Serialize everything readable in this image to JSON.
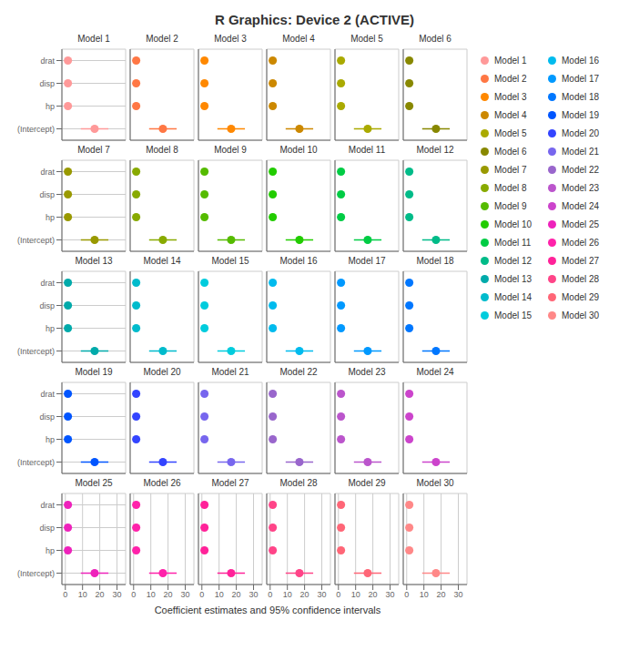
{
  "title": "R Graphics: Device 2 (ACTIVE)",
  "xlabel": "Coefficient estimates and 95% confidence intervals",
  "legend": "right",
  "chart_data": [
    {
      "type": "scatter",
      "orientation": "horizontal",
      "title": "Model 1",
      "color": "#FF9999",
      "categories": [
        "drat",
        "disp",
        "hp",
        "(Intercept)"
      ],
      "values": [
        1.5,
        1.5,
        1.5,
        17
      ],
      "errors": [
        null,
        null,
        null,
        8
      ],
      "xlim": [
        -2,
        35
      ],
      "xticks": [
        0,
        10,
        20,
        30
      ],
      "grid": true,
      "tick_labels": "y"
    },
    {
      "type": "scatter",
      "orientation": "horizontal",
      "title": "Model 2",
      "color": "#FF7744",
      "categories": [
        "drat",
        "disp",
        "hp",
        "(Intercept)"
      ],
      "values": [
        1.5,
        1.5,
        1.5,
        17
      ],
      "errors": [
        null,
        null,
        null,
        8
      ],
      "xlim": [
        -2,
        35
      ],
      "xticks": [
        0,
        10,
        20,
        30
      ],
      "grid": true,
      "tick_labels": false
    },
    {
      "type": "scatter",
      "orientation": "horizontal",
      "title": "Model 3",
      "color": "#FF8800",
      "categories": [
        "drat",
        "disp",
        "hp",
        "(Intercept)"
      ],
      "values": [
        1.5,
        1.5,
        1.5,
        17
      ],
      "errors": [
        null,
        null,
        null,
        8
      ],
      "xlim": [
        -2,
        35
      ],
      "xticks": [
        0,
        10,
        20,
        30
      ],
      "grid": true,
      "tick_labels": false
    },
    {
      "type": "scatter",
      "orientation": "horizontal",
      "title": "Model 4",
      "color": "#CC8800",
      "categories": [
        "drat",
        "disp",
        "hp",
        "(Intercept)"
      ],
      "values": [
        1.5,
        1.5,
        1.5,
        17
      ],
      "errors": [
        null,
        null,
        null,
        8
      ],
      "xlim": [
        -2,
        35
      ],
      "xticks": [
        0,
        10,
        20,
        30
      ],
      "grid": true,
      "tick_labels": false
    },
    {
      "type": "scatter",
      "orientation": "horizontal",
      "title": "Model 5",
      "color": "#AAAA00",
      "categories": [
        "drat",
        "disp",
        "hp",
        "(Intercept)"
      ],
      "values": [
        1.5,
        1.5,
        1.5,
        17
      ],
      "errors": [
        null,
        null,
        null,
        8
      ],
      "xlim": [
        -2,
        35
      ],
      "xticks": [
        0,
        10,
        20,
        30
      ],
      "grid": true,
      "tick_labels": false
    },
    {
      "type": "scatter",
      "orientation": "horizontal",
      "title": "Model 6",
      "color": "#888800",
      "categories": [
        "drat",
        "disp",
        "hp",
        "(Intercept)"
      ],
      "values": [
        1.5,
        1.5,
        1.5,
        17
      ],
      "errors": [
        null,
        null,
        null,
        8
      ],
      "xlim": [
        -2,
        35
      ],
      "xticks": [
        0,
        10,
        20,
        30
      ],
      "grid": true,
      "tick_labels": false
    },
    {
      "type": "scatter",
      "orientation": "horizontal",
      "title": "Model 7",
      "color": "#999900",
      "categories": [
        "drat",
        "disp",
        "hp",
        "(Intercept)"
      ],
      "values": [
        1.5,
        1.5,
        1.5,
        17
      ],
      "errors": [
        null,
        null,
        null,
        8
      ],
      "xlim": [
        -2,
        35
      ],
      "xticks": [
        0,
        10,
        20,
        30
      ],
      "grid": true,
      "tick_labels": "y"
    },
    {
      "type": "scatter",
      "orientation": "horizontal",
      "title": "Model 8",
      "color": "#88AA00",
      "categories": [
        "drat",
        "disp",
        "hp",
        "(Intercept)"
      ],
      "values": [
        1.5,
        1.5,
        1.5,
        17
      ],
      "errors": [
        null,
        null,
        null,
        8
      ],
      "xlim": [
        -2,
        35
      ],
      "xticks": [
        0,
        10,
        20,
        30
      ],
      "grid": true,
      "tick_labels": false
    },
    {
      "type": "scatter",
      "orientation": "horizontal",
      "title": "Model 9",
      "color": "#55BB00",
      "categories": [
        "drat",
        "disp",
        "hp",
        "(Intercept)"
      ],
      "values": [
        1.5,
        1.5,
        1.5,
        17
      ],
      "errors": [
        null,
        null,
        null,
        8
      ],
      "xlim": [
        -2,
        35
      ],
      "xticks": [
        0,
        10,
        20,
        30
      ],
      "grid": true,
      "tick_labels": false
    },
    {
      "type": "scatter",
      "orientation": "horizontal",
      "title": "Model 10",
      "color": "#22CC00",
      "categories": [
        "drat",
        "disp",
        "hp",
        "(Intercept)"
      ],
      "values": [
        1.5,
        1.5,
        1.5,
        17
      ],
      "errors": [
        null,
        null,
        null,
        8
      ],
      "xlim": [
        -2,
        35
      ],
      "xticks": [
        0,
        10,
        20,
        30
      ],
      "grid": true,
      "tick_labels": false
    },
    {
      "type": "scatter",
      "orientation": "horizontal",
      "title": "Model 11",
      "color": "#00CC44",
      "categories": [
        "drat",
        "disp",
        "hp",
        "(Intercept)"
      ],
      "values": [
        1.5,
        1.5,
        1.5,
        17
      ],
      "errors": [
        null,
        null,
        null,
        8
      ],
      "xlim": [
        -2,
        35
      ],
      "xticks": [
        0,
        10,
        20,
        30
      ],
      "grid": true,
      "tick_labels": false
    },
    {
      "type": "scatter",
      "orientation": "horizontal",
      "title": "Model 12",
      "color": "#00BB88",
      "categories": [
        "drat",
        "disp",
        "hp",
        "(Intercept)"
      ],
      "values": [
        1.5,
        1.5,
        1.5,
        17
      ],
      "errors": [
        null,
        null,
        null,
        8
      ],
      "xlim": [
        -2,
        35
      ],
      "xticks": [
        0,
        10,
        20,
        30
      ],
      "grid": true,
      "tick_labels": false
    },
    {
      "type": "scatter",
      "orientation": "horizontal",
      "title": "Model 13",
      "color": "#00AAAA",
      "categories": [
        "drat",
        "disp",
        "hp",
        "(Intercept)"
      ],
      "values": [
        1.5,
        1.5,
        1.5,
        17
      ],
      "errors": [
        null,
        null,
        null,
        8
      ],
      "xlim": [
        -2,
        35
      ],
      "xticks": [
        0,
        10,
        20,
        30
      ],
      "grid": true,
      "tick_labels": "y"
    },
    {
      "type": "scatter",
      "orientation": "horizontal",
      "title": "Model 14",
      "color": "#00BBCC",
      "categories": [
        "drat",
        "disp",
        "hp",
        "(Intercept)"
      ],
      "values": [
        1.5,
        1.5,
        1.5,
        17
      ],
      "errors": [
        null,
        null,
        null,
        8
      ],
      "xlim": [
        -2,
        35
      ],
      "xticks": [
        0,
        10,
        20,
        30
      ],
      "grid": true,
      "tick_labels": false
    },
    {
      "type": "scatter",
      "orientation": "horizontal",
      "title": "Model 15",
      "color": "#00CCDD",
      "categories": [
        "drat",
        "disp",
        "hp",
        "(Intercept)"
      ],
      "values": [
        1.5,
        1.5,
        1.5,
        17
      ],
      "errors": [
        null,
        null,
        null,
        8
      ],
      "xlim": [
        -2,
        35
      ],
      "xticks": [
        0,
        10,
        20,
        30
      ],
      "grid": true,
      "tick_labels": false
    },
    {
      "type": "scatter",
      "orientation": "horizontal",
      "title": "Model 16",
      "color": "#00BBEE",
      "categories": [
        "drat",
        "disp",
        "hp",
        "(Intercept)"
      ],
      "values": [
        1.5,
        1.5,
        1.5,
        17
      ],
      "errors": [
        null,
        null,
        null,
        8
      ],
      "xlim": [
        -2,
        35
      ],
      "xticks": [
        0,
        10,
        20,
        30
      ],
      "grid": true,
      "tick_labels": false
    },
    {
      "type": "scatter",
      "orientation": "horizontal",
      "title": "Model 17",
      "color": "#0099FF",
      "categories": [
        "drat",
        "disp",
        "hp",
        "(Intercept)"
      ],
      "values": [
        1.5,
        1.5,
        1.5,
        17
      ],
      "errors": [
        null,
        null,
        null,
        8
      ],
      "xlim": [
        -2,
        35
      ],
      "xticks": [
        0,
        10,
        20,
        30
      ],
      "grid": true,
      "tick_labels": false
    },
    {
      "type": "scatter",
      "orientation": "horizontal",
      "title": "Model 18",
      "color": "#0077FF",
      "categories": [
        "drat",
        "disp",
        "hp",
        "(Intercept)"
      ],
      "values": [
        1.5,
        1.5,
        1.5,
        17
      ],
      "errors": [
        null,
        null,
        null,
        8
      ],
      "xlim": [
        -2,
        35
      ],
      "xticks": [
        0,
        10,
        20,
        30
      ],
      "grid": true,
      "tick_labels": false
    },
    {
      "type": "scatter",
      "orientation": "horizontal",
      "title": "Model 19",
      "color": "#0055FF",
      "categories": [
        "drat",
        "disp",
        "hp",
        "(Intercept)"
      ],
      "values": [
        1.5,
        1.5,
        1.5,
        17
      ],
      "errors": [
        null,
        null,
        null,
        8
      ],
      "xlim": [
        -2,
        35
      ],
      "xticks": [
        0,
        10,
        20,
        30
      ],
      "grid": true,
      "tick_labels": "y"
    },
    {
      "type": "scatter",
      "orientation": "horizontal",
      "title": "Model 20",
      "color": "#3344FF",
      "categories": [
        "drat",
        "disp",
        "hp",
        "(Intercept)"
      ],
      "values": [
        1.5,
        1.5,
        1.5,
        17
      ],
      "errors": [
        null,
        null,
        null,
        8
      ],
      "xlim": [
        -2,
        35
      ],
      "xticks": [
        0,
        10,
        20,
        30
      ],
      "grid": true,
      "tick_labels": false
    },
    {
      "type": "scatter",
      "orientation": "horizontal",
      "title": "Model 21",
      "color": "#7766EE",
      "categories": [
        "drat",
        "disp",
        "hp",
        "(Intercept)"
      ],
      "values": [
        1.5,
        1.5,
        1.5,
        17
      ],
      "errors": [
        null,
        null,
        null,
        8
      ],
      "xlim": [
        -2,
        35
      ],
      "xticks": [
        0,
        10,
        20,
        30
      ],
      "grid": true,
      "tick_labels": false
    },
    {
      "type": "scatter",
      "orientation": "horizontal",
      "title": "Model 22",
      "color": "#9966CC",
      "categories": [
        "drat",
        "disp",
        "hp",
        "(Intercept)"
      ],
      "values": [
        1.5,
        1.5,
        1.5,
        17
      ],
      "errors": [
        null,
        null,
        null,
        8
      ],
      "xlim": [
        -2,
        35
      ],
      "xticks": [
        0,
        10,
        20,
        30
      ],
      "grid": true,
      "tick_labels": false
    },
    {
      "type": "scatter",
      "orientation": "horizontal",
      "title": "Model 23",
      "color": "#BB55CC",
      "categories": [
        "drat",
        "disp",
        "hp",
        "(Intercept)"
      ],
      "values": [
        1.5,
        1.5,
        1.5,
        17
      ],
      "errors": [
        null,
        null,
        null,
        8
      ],
      "xlim": [
        -2,
        35
      ],
      "xticks": [
        0,
        10,
        20,
        30
      ],
      "grid": true,
      "tick_labels": false
    },
    {
      "type": "scatter",
      "orientation": "horizontal",
      "title": "Model 24",
      "color": "#CC44CC",
      "categories": [
        "drat",
        "disp",
        "hp",
        "(Intercept)"
      ],
      "values": [
        1.5,
        1.5,
        1.5,
        17
      ],
      "errors": [
        null,
        null,
        null,
        8
      ],
      "xlim": [
        -2,
        35
      ],
      "xticks": [
        0,
        10,
        20,
        30
      ],
      "grid": true,
      "tick_labels": false
    },
    {
      "type": "scatter",
      "orientation": "horizontal",
      "title": "Model 25",
      "color": "#EE22BB",
      "categories": [
        "drat",
        "disp",
        "hp",
        "(Intercept)"
      ],
      "values": [
        1.5,
        1.5,
        1.5,
        17
      ],
      "errors": [
        null,
        null,
        null,
        8
      ],
      "xlim": [
        -2,
        35
      ],
      "xticks": [
        0,
        10,
        20,
        30
      ],
      "grid": true
    },
    {
      "type": "scatter",
      "orientation": "horizontal",
      "title": "Model 26",
      "color": "#FF22AA",
      "categories": [
        "drat",
        "disp",
        "hp",
        "(Intercept)"
      ],
      "values": [
        1.5,
        1.5,
        1.5,
        17
      ],
      "errors": [
        null,
        null,
        null,
        8
      ],
      "xlim": [
        -2,
        35
      ],
      "xticks": [
        0,
        10,
        20,
        30
      ],
      "grid": true,
      "tick_labels": "x"
    },
    {
      "type": "scatter",
      "orientation": "horizontal",
      "title": "Model 27",
      "color": "#FF2299",
      "categories": [
        "drat",
        "disp",
        "hp",
        "(Intercept)"
      ],
      "values": [
        1.5,
        1.5,
        1.5,
        17
      ],
      "errors": [
        null,
        null,
        null,
        8
      ],
      "xlim": [
        -2,
        35
      ],
      "xticks": [
        0,
        10,
        20,
        30
      ],
      "grid": true,
      "tick_labels": "x"
    },
    {
      "type": "scatter",
      "orientation": "horizontal",
      "title": "Model 28",
      "color": "#FF4488",
      "categories": [
        "drat",
        "disp",
        "hp",
        "(Intercept)"
      ],
      "values": [
        1.5,
        1.5,
        1.5,
        17
      ],
      "errors": [
        null,
        null,
        null,
        8
      ],
      "xlim": [
        -2,
        35
      ],
      "xticks": [
        0,
        10,
        20,
        30
      ],
      "grid": true,
      "tick_labels": "x"
    },
    {
      "type": "scatter",
      "orientation": "horizontal",
      "title": "Model 29",
      "color": "#FF6677",
      "categories": [
        "drat",
        "disp",
        "hp",
        "(Intercept)"
      ],
      "values": [
        1.5,
        1.5,
        1.5,
        17
      ],
      "errors": [
        null,
        null,
        null,
        8
      ],
      "xlim": [
        -2,
        35
      ],
      "xticks": [
        0,
        10,
        20,
        30
      ],
      "grid": true,
      "tick_labels": "x"
    },
    {
      "type": "scatter",
      "orientation": "horizontal",
      "title": "Model 30",
      "color": "#FF8888",
      "categories": [
        "drat",
        "disp",
        "hp",
        "(Intercept)"
      ],
      "values": [
        1.5,
        1.5,
        1.5,
        17
      ],
      "errors": [
        null,
        null,
        null,
        8
      ],
      "xlim": [
        -2,
        35
      ],
      "xticks": [
        0,
        10,
        20,
        30
      ],
      "grid": true,
      "tick_labels": "x"
    }
  ]
}
